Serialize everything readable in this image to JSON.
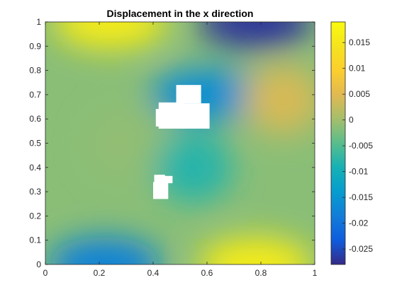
{
  "chart_data": {
    "type": "heatmap",
    "title": "Displacement in the x direction",
    "xlabel": "",
    "ylabel": "",
    "xlim": [
      0,
      1
    ],
    "ylim": [
      0,
      1
    ],
    "xticks": [
      "0",
      "0.2",
      "0.4",
      "0.6",
      "0.8",
      "1"
    ],
    "yticks": [
      "0",
      "0.1",
      "0.2",
      "0.3",
      "0.4",
      "0.5",
      "0.6",
      "0.7",
      "0.8",
      "0.9",
      "1"
    ],
    "colorbar": {
      "colormap": "parula",
      "clim": [
        -0.028,
        0.019
      ],
      "ticks": [
        "-0.025",
        "-0.02",
        "-0.015",
        "-0.01",
        "-0.005",
        "0",
        "0.005",
        "0.01",
        "0.015"
      ]
    },
    "field_features": [
      {
        "x": 0.24,
        "y": 1.0,
        "value": 0.016
      },
      {
        "x": 0.78,
        "y": 0.0,
        "value": 0.016
      },
      {
        "x": 0.78,
        "y": 1.0,
        "value": -0.027
      },
      {
        "x": 0.22,
        "y": 0.0,
        "value": -0.018
      },
      {
        "x": 0.6,
        "y": 0.7,
        "value": -0.016
      },
      {
        "x": 0.88,
        "y": 0.68,
        "value": 0.004
      },
      {
        "x": 0.3,
        "y": 0.5,
        "value": -0.001
      },
      {
        "x": 0.55,
        "y": 0.4,
        "value": -0.008
      }
    ],
    "holes": [
      {
        "name": "upper-cluster",
        "x_range": [
          0.41,
          0.62
        ],
        "y_range": [
          0.56,
          0.74
        ]
      },
      {
        "name": "lower-cluster",
        "x_range": [
          0.4,
          0.48
        ],
        "y_range": [
          0.27,
          0.37
        ]
      }
    ],
    "grid": false,
    "legend": "none"
  },
  "colors": {
    "background": "#ffffff",
    "axis": "#262626"
  }
}
